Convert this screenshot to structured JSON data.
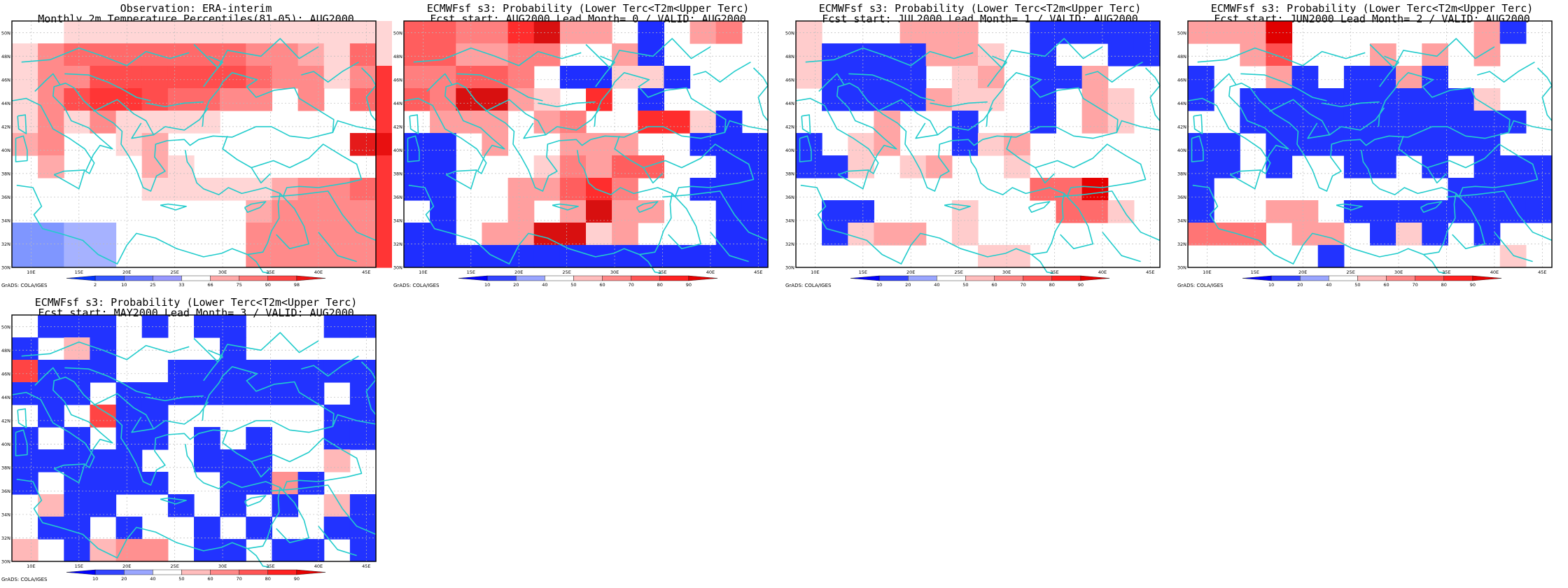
{
  "panels": [
    {
      "id": "obs",
      "title_line1": "Observation: ERA-interim",
      "title_line2": "Monthly 2m Temperature Percentiles(81-05): AUG2000",
      "colorbar_labels": [
        "2",
        "10",
        "25",
        "33",
        "66",
        "75",
        "90",
        "98"
      ],
      "colorbar_colors": [
        "#0033ff",
        "#3355ff",
        "#6677ff",
        "#9999ff",
        "#ffffff",
        "#ffaaaa",
        "#ff7777",
        "#ff4444",
        "#ee1111"
      ],
      "credit": "GrADS: COLA/IGES",
      "grid": [
        "001111111111111",
        "134444444332141",
        "133555555433136",
        "135665443303046",
        "131311110000006",
        "230012000000097",
        "020002100000006",
        "000001111123346",
        "000000000233336",
        "bbdd00000333336",
        "bbdd00000333336"
      ],
      "class_colors": {
        "0": "#ffffff",
        "1": "#ffd6d6",
        "2": "#ffaaaa",
        "3": "#ff8a8a",
        "4": "#ff6a6a",
        "5": "#ff4d4d",
        "6": "#ff3535",
        "7": "#e81010",
        "9": "#e51a1a",
        "b": "#7f96ff",
        "d": "#a6b2ff"
      }
    },
    {
      "id": "lead0",
      "title_line1": "ECMWFsf s3: Probability (Lower Terc<T2m<Upper Terc)",
      "title_line2": "Fcst start: AUG2000   Lead Month= 0 / VALID: AUG2000",
      "colorbar_labels": [
        "10",
        "20",
        "40",
        "50",
        "60",
        "70",
        "80",
        "90"
      ],
      "colorbar_colors": [
        "#0000ff",
        "#3344ff",
        "#9aa6ff",
        "#ffffff",
        "#ffbdbd",
        "#ff8888",
        "#ff5555",
        "#ff2222",
        "#e60000"
      ],
      "credit": "GrADS: COLA/IGES",
      "grid": [
        "443356220b0230",
        "442233002b0000",
        "334430bb11b000",
        "436621050b0000",
        "022202300551b0",
        "bb020022200bbb",
        "bb0001324400bb",
        "bb002245300bbb",
        "0b0020262200bb",
        "bb0226612000bb",
        "bbbbbbbbbbbbbb"
      ],
      "class_colors": {
        "0": "#ffffff",
        "1": "#ffd0d0",
        "2": "#ff9f9f",
        "3": "#ff7f7f",
        "4": "#ff5e5e",
        "5": "#ff2d2d",
        "6": "#d81010",
        "b": "#1f2eff"
      }
    },
    {
      "id": "lead1",
      "title_line1": "ECMWFsf s3: Probability (Lower Terc<T2m<Upper Terc)",
      "title_line2": "Fcst start: JUL2000   Lead Month= 1 / VALID: AUG2000",
      "colorbar_labels": [
        "10",
        "20",
        "40",
        "50",
        "60",
        "70",
        "80",
        "90"
      ],
      "colorbar_colors": [
        "#0000ff",
        "#3344ff",
        "#9aa6ff",
        "#ffffff",
        "#ffbdbd",
        "#ff8888",
        "#ff5555",
        "#ff2222",
        "#e60000"
      ],
      "credit": "GrADS: COLA/IGES",
      "grid": [
        "100022200bbbbb",
        "1bbbb2210b00bb",
        "1bbbb0120bb200",
        "0bbbb2110b0210",
        "000200b00b0210",
        "b01200b1200000",
        "bb101200100000",
        "000000000336000",
        "0bb00010003310",
        "0b12201000000",
        "000000011000000"
      ],
      "class_colors": {
        "0": "#ffffff",
        "1": "#ffcccc",
        "2": "#ffa5a5",
        "3": "#ff6b6b",
        "6": "#e60000",
        "b": "#2233ff"
      }
    },
    {
      "id": "lead2",
      "title_line1": "ECMWFsf s3: Probability (Lower Terc<T2m<Upper Terc)",
      "title_line2": "Fcst start: JUN2000   Lead Month= 2 / VALID: AUG2000",
      "colorbar_labels": [
        "10",
        "20",
        "40",
        "50",
        "60",
        "70",
        "80",
        "90"
      ],
      "colorbar_colors": [
        "#0000ff",
        "#3344ff",
        "#9aa6ff",
        "#ffffff",
        "#ffbdbd",
        "#ff8888",
        "#ff5555",
        "#ff2222",
        "#e60000"
      ],
      "credit": "GrADS: COLA/IGES",
      "grid": [
        "222600000002b0",
        "002400020202000",
        "b002b0bb2b0000",
        "b0bbbbbbbbb100",
        "00bbbbbbbbbbb0",
        "bb0bbbbbbbbb00",
        "bb0b00bb0b0bbb",
        "b000000000bbbb",
        "b00220bbbbbbbb",
        "3330220b1b0b00",
        "00000b0000001"
      ],
      "class_colors": {
        "0": "#ffffff",
        "1": "#ffcccc",
        "2": "#ffa0a0",
        "3": "#ff7575",
        "4": "#ff5050",
        "6": "#e00000",
        "b": "#2233ff"
      }
    },
    {
      "id": "lead3",
      "title_line1": "ECMWFsf s3: Probability (Lower Terc<T2m<Upper Terc)",
      "title_line2": "Fcst start: MAY2000   Lead Month= 3 / VALID: AUG2000",
      "colorbar_labels": [
        "10",
        "20",
        "40",
        "50",
        "60",
        "70",
        "80",
        "90"
      ],
      "colorbar_colors": [
        "#0000ff",
        "#3344ff",
        "#9aa6ff",
        "#ffffff",
        "#ffbdbd",
        "#ff8888",
        "#ff5555",
        "#ff2222",
        "#e60000"
      ],
      "credit": "GrADS: COLA/IGES",
      "grid": [
        "0bbb0b0bb000bb",
        "b01b0000b00000",
        "5bbb00bbbbbbbb",
        "bbb0bbbbbbbb0b",
        "0b05bb000000bb",
        "b0b0bb0b0b00bb",
        "bbbbb00bbb0010",
        "b0bbbb00bb2b00",
        "01bb00b0b0b01b",
        "0bb0b00b0b00bb",
        "10b1220bb0bb0b"
      ],
      "class_colors": {
        "0": "#ffffff",
        "1": "#ffb8b8",
        "2": "#ff9090",
        "5": "#ff4444",
        "b": "#2233ff"
      }
    }
  ],
  "lat_labels": [
    "50N",
    "48N",
    "46N",
    "44N",
    "42N",
    "40N",
    "38N",
    "36N",
    "34N",
    "32N",
    "30N"
  ],
  "lon_labels": [
    "10E",
    "15E",
    "20E",
    "25E",
    "30E",
    "35E",
    "40E",
    "45E"
  ],
  "map_colors": {
    "coast": "#22cccc",
    "grid": "#bbbbbb",
    "frame": "#000000"
  }
}
